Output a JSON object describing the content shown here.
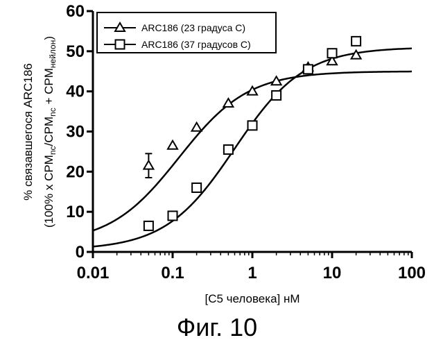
{
  "chart_data": {
    "type": "scatter",
    "xscale": "log",
    "xlim": [
      0.01,
      100
    ],
    "ylim": [
      0,
      60
    ],
    "xticks": [
      0.01,
      0.1,
      1,
      10,
      100
    ],
    "xtick_labels": [
      "0.01",
      "0.1",
      "1",
      "10",
      "100"
    ],
    "yticks": [
      0,
      10,
      20,
      30,
      40,
      50,
      60
    ],
    "ytick_labels": [
      "0",
      "10",
      "20",
      "30",
      "40",
      "50",
      "60"
    ],
    "xlabel": "[C5 человека] нМ",
    "ylabel_line1": "% связавшегося ARC186",
    "ylabel_line2_parts": [
      "(100% x CPM",
      "nc",
      "/CPM",
      "nc",
      " + CPM",
      "нейлон",
      ")"
    ],
    "caption": "Фиг. 10",
    "grid": false,
    "legend_position": "top-left",
    "series": [
      {
        "name": "ARC186 (23 градуса С)",
        "marker": "triangle",
        "x": [
          0.05,
          0.1,
          0.2,
          0.5,
          1,
          2,
          5,
          10,
          20
        ],
        "y": [
          21.5,
          26.5,
          31,
          37,
          40,
          42.5,
          46,
          47.5,
          49
        ],
        "err": [
          3,
          0,
          0,
          0,
          0,
          0,
          0,
          0,
          0
        ],
        "fit": {
          "bottom": 2,
          "top": 45,
          "ec50": 0.12,
          "hill": 1
        }
      },
      {
        "name": "ARC186 (37 градусов С)",
        "marker": "square",
        "x": [
          0.05,
          0.1,
          0.2,
          0.5,
          1,
          2,
          5,
          10,
          20
        ],
        "y": [
          6.5,
          9,
          16,
          25.5,
          31.5,
          39,
          45.5,
          49.5,
          52.5
        ],
        "err": [
          0,
          0,
          0,
          0,
          0,
          0,
          0,
          0,
          1
        ],
        "fit": {
          "bottom": 0.5,
          "top": 51,
          "ec50": 0.6,
          "hill": 1
        }
      }
    ]
  }
}
